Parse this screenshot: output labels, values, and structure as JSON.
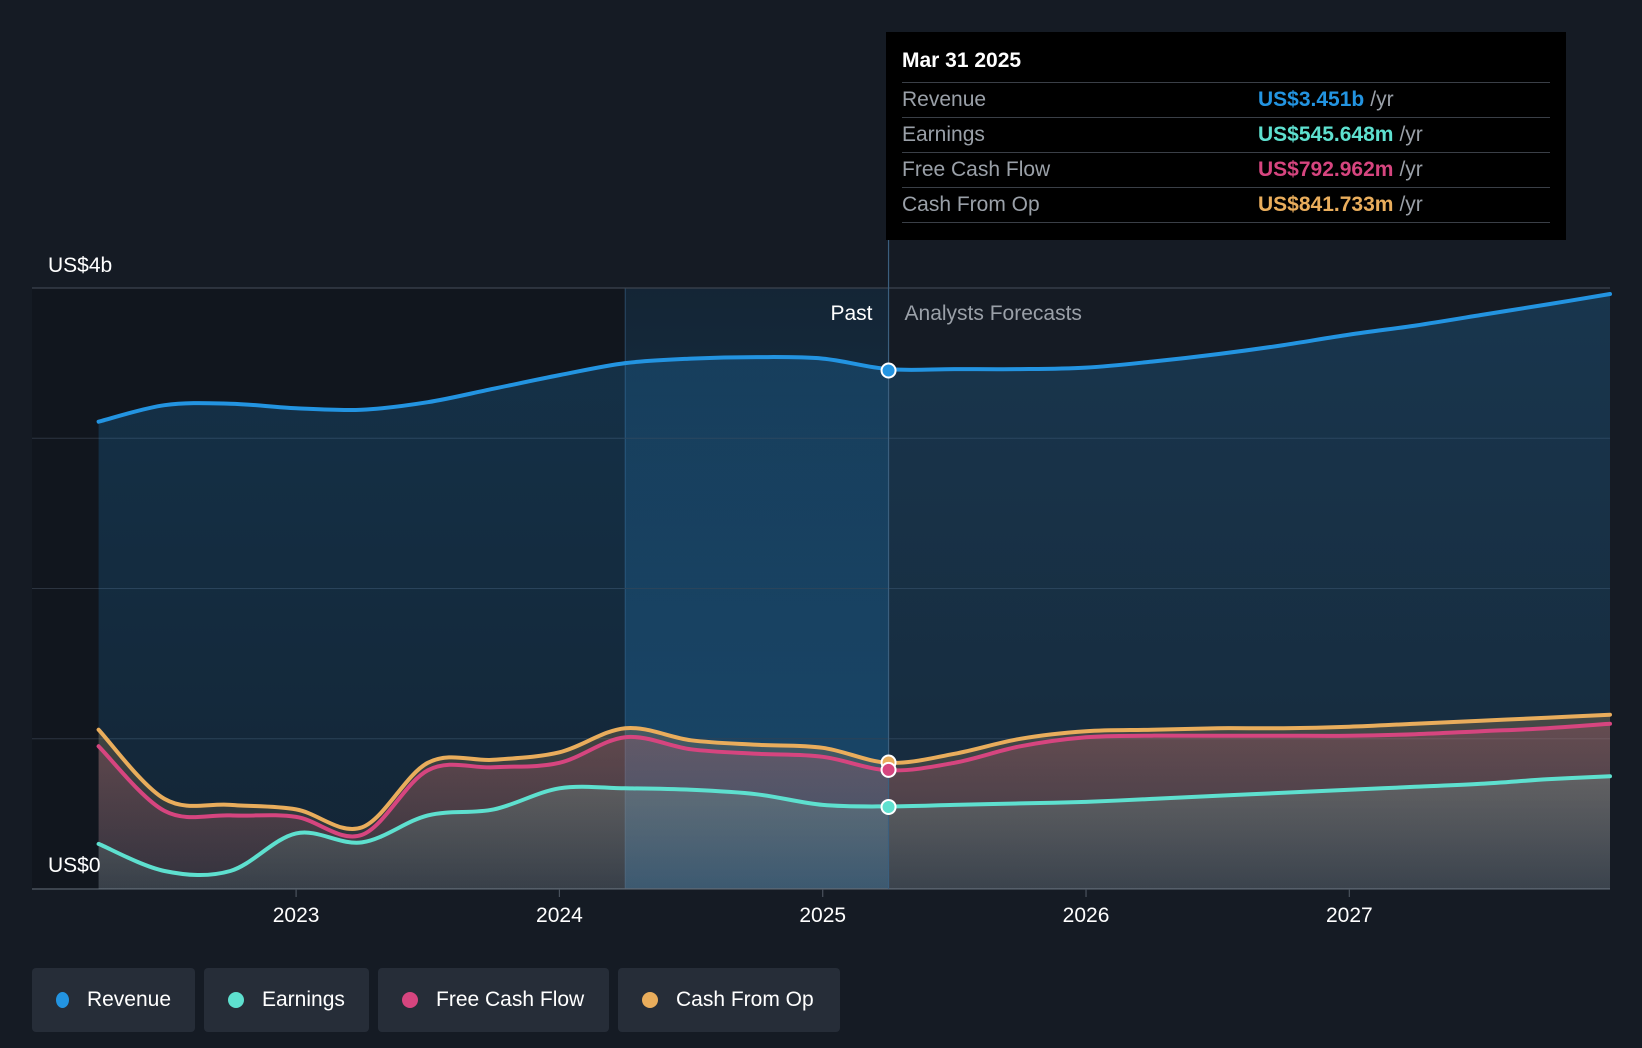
{
  "tooltip": {
    "date": "Mar 31 2025",
    "rows": [
      {
        "label": "Revenue",
        "value": "US$3.451b",
        "unit": "/yr",
        "color": "#2394e1"
      },
      {
        "label": "Earnings",
        "value": "US$545.648m",
        "unit": "/yr",
        "color": "#5ee0cf"
      },
      {
        "label": "Free Cash Flow",
        "value": "US$792.962m",
        "unit": "/yr",
        "color": "#d6457f"
      },
      {
        "label": "Cash From Op",
        "value": "US$841.733m",
        "unit": "/yr",
        "color": "#e9ad5c"
      }
    ]
  },
  "legend": [
    {
      "label": "Revenue",
      "color": "#2394e1"
    },
    {
      "label": "Earnings",
      "color": "#5ee0cf"
    },
    {
      "label": "Free Cash Flow",
      "color": "#d6457f"
    },
    {
      "label": "Cash From Op",
      "color": "#e9ad5c"
    }
  ],
  "chart_data": {
    "type": "line",
    "y_tick_labels": {
      "top": "US$4b",
      "bottom": "US$0"
    },
    "ylim": [
      0,
      4
    ],
    "y_unit": "US$ billions",
    "x_tick_labels": [
      "2023",
      "2024",
      "2025",
      "2026",
      "2027"
    ],
    "xlim": [
      2022.24,
      2027.99
    ],
    "past_label": "Past",
    "forecast_label": "Analysts Forecasts",
    "divider_x": 2025.25,
    "highlight_start_x": 2024.25,
    "grid": true,
    "legend_position": "bottom-left",
    "series": [
      {
        "name": "Revenue",
        "color": "#2394e1",
        "points": [
          [
            2022.25,
            3.11
          ],
          [
            2022.5,
            3.22
          ],
          [
            2022.75,
            3.23
          ],
          [
            2023.0,
            3.2
          ],
          [
            2023.25,
            3.19
          ],
          [
            2023.5,
            3.24
          ],
          [
            2023.75,
            3.33
          ],
          [
            2024.0,
            3.42
          ],
          [
            2024.25,
            3.5
          ],
          [
            2024.5,
            3.53
          ],
          [
            2024.75,
            3.54
          ],
          [
            2025.0,
            3.53
          ],
          [
            2025.25,
            3.46
          ],
          [
            2025.5,
            3.46
          ],
          [
            2025.75,
            3.46
          ],
          [
            2026.0,
            3.47
          ],
          [
            2026.25,
            3.51
          ],
          [
            2026.5,
            3.56
          ],
          [
            2026.75,
            3.62
          ],
          [
            2027.0,
            3.69
          ],
          [
            2027.25,
            3.75
          ],
          [
            2027.5,
            3.82
          ],
          [
            2027.75,
            3.89
          ],
          [
            2028.0,
            3.96
          ]
        ]
      },
      {
        "name": "Earnings",
        "color": "#5ee0cf",
        "points": [
          [
            2022.25,
            0.3
          ],
          [
            2022.5,
            0.12
          ],
          [
            2022.75,
            0.12
          ],
          [
            2023.0,
            0.37
          ],
          [
            2023.25,
            0.31
          ],
          [
            2023.5,
            0.49
          ],
          [
            2023.75,
            0.53
          ],
          [
            2024.0,
            0.67
          ],
          [
            2024.25,
            0.67
          ],
          [
            2024.5,
            0.66
          ],
          [
            2024.75,
            0.63
          ],
          [
            2025.0,
            0.56
          ],
          [
            2025.25,
            0.55
          ],
          [
            2025.5,
            0.56
          ],
          [
            2025.75,
            0.57
          ],
          [
            2026.0,
            0.58
          ],
          [
            2026.25,
            0.6
          ],
          [
            2026.5,
            0.62
          ],
          [
            2026.75,
            0.64
          ],
          [
            2027.0,
            0.66
          ],
          [
            2027.25,
            0.68
          ],
          [
            2027.5,
            0.7
          ],
          [
            2027.75,
            0.73
          ],
          [
            2028.0,
            0.75
          ]
        ]
      },
      {
        "name": "Free Cash Flow",
        "color": "#d6457f",
        "points": [
          [
            2022.25,
            0.95
          ],
          [
            2022.5,
            0.52
          ],
          [
            2022.75,
            0.49
          ],
          [
            2023.0,
            0.48
          ],
          [
            2023.25,
            0.36
          ],
          [
            2023.5,
            0.79
          ],
          [
            2023.75,
            0.81
          ],
          [
            2024.0,
            0.84
          ],
          [
            2024.25,
            1.01
          ],
          [
            2024.5,
            0.93
          ],
          [
            2024.75,
            0.9
          ],
          [
            2025.0,
            0.88
          ],
          [
            2025.25,
            0.79
          ],
          [
            2025.5,
            0.84
          ],
          [
            2025.75,
            0.95
          ],
          [
            2026.0,
            1.01
          ],
          [
            2026.25,
            1.02
          ],
          [
            2026.5,
            1.02
          ],
          [
            2026.75,
            1.02
          ],
          [
            2027.0,
            1.02
          ],
          [
            2027.25,
            1.03
          ],
          [
            2027.5,
            1.05
          ],
          [
            2027.75,
            1.07
          ],
          [
            2028.0,
            1.1
          ]
        ]
      },
      {
        "name": "Cash From Op",
        "color": "#e9ad5c",
        "points": [
          [
            2022.25,
            1.06
          ],
          [
            2022.5,
            0.6
          ],
          [
            2022.75,
            0.56
          ],
          [
            2023.0,
            0.53
          ],
          [
            2023.25,
            0.41
          ],
          [
            2023.5,
            0.84
          ],
          [
            2023.75,
            0.86
          ],
          [
            2024.0,
            0.91
          ],
          [
            2024.25,
            1.07
          ],
          [
            2024.5,
            0.99
          ],
          [
            2024.75,
            0.96
          ],
          [
            2025.0,
            0.94
          ],
          [
            2025.25,
            0.84
          ],
          [
            2025.5,
            0.9
          ],
          [
            2025.75,
            1.0
          ],
          [
            2026.0,
            1.05
          ],
          [
            2026.25,
            1.06
          ],
          [
            2026.5,
            1.07
          ],
          [
            2026.75,
            1.07
          ],
          [
            2027.0,
            1.08
          ],
          [
            2027.25,
            1.1
          ],
          [
            2027.5,
            1.12
          ],
          [
            2027.75,
            1.14
          ],
          [
            2028.0,
            1.16
          ]
        ]
      }
    ],
    "highlight_points": [
      {
        "series": "Revenue",
        "x": 2025.25,
        "y": 3.451
      },
      {
        "series": "Cash From Op",
        "x": 2025.25,
        "y": 0.842
      },
      {
        "series": "Free Cash Flow",
        "x": 2025.25,
        "y": 0.793
      },
      {
        "series": "Earnings",
        "x": 2025.25,
        "y": 0.546
      }
    ]
  }
}
